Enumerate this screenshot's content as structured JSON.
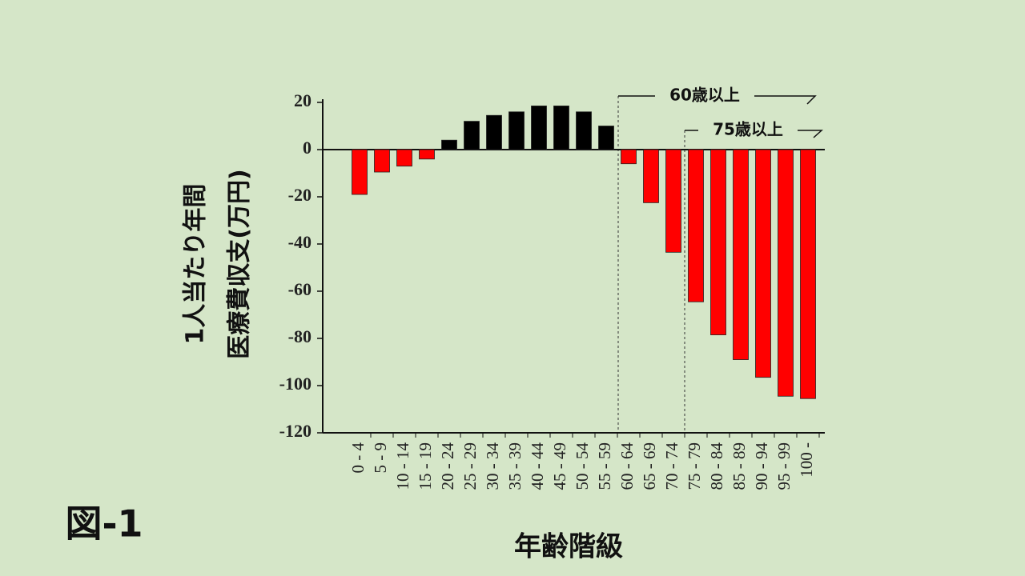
{
  "chart_data": {
    "type": "bar",
    "label": "図-1",
    "y_label": [
      "1人当たり年間",
      "医療費収支(万円)"
    ],
    "x_label": "年齢階級",
    "annotations": [
      "60歳以上",
      "75歳以上"
    ],
    "categories": [
      "0 - 4",
      "5 - 9",
      "10 - 14",
      "15 - 19",
      "20 - 24",
      "25 - 29",
      "30 - 34",
      "35 - 39",
      "40 - 44",
      "45 - 49",
      "50 - 54",
      "55 - 59",
      "60 - 64",
      "65 - 69",
      "70 - 74",
      "75 - 79",
      "80 - 84",
      "85 - 89",
      "90 - 94",
      "95 - 99",
      "100 -"
    ],
    "values": [
      -19,
      -9.5,
      -7,
      -4,
      4,
      12,
      14.5,
      16,
      18.5,
      18.5,
      16,
      10,
      -6,
      -22.5,
      -43.5,
      -64.5,
      -78.5,
      -89,
      -96.5,
      -104.5,
      -105.5
    ],
    "positive_color": "#000000",
    "negative_color": "#ff0000",
    "ylim": [
      -120,
      20
    ],
    "yticks": [
      -120,
      -100,
      -80,
      -60,
      -40,
      -20,
      0,
      20
    ]
  }
}
